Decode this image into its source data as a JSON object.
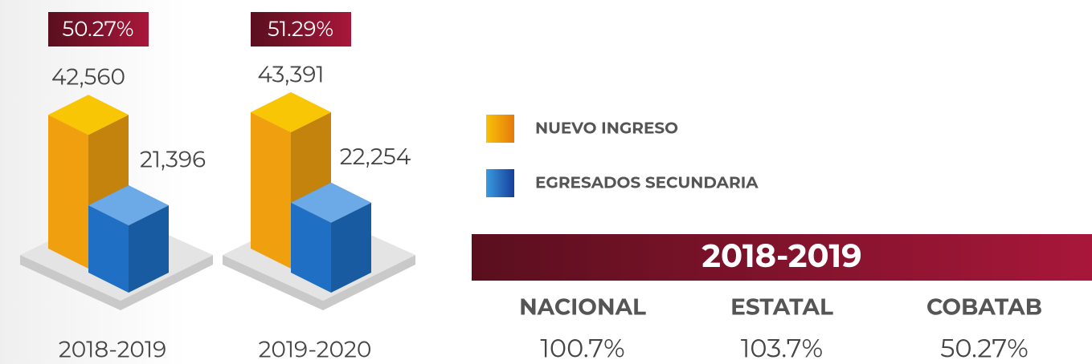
{
  "chart_data": {
    "type": "bar3d",
    "categories": [
      "2018-2019",
      "2019-2020"
    ],
    "percent_labels": [
      "50.27%",
      "51.29%"
    ],
    "series": [
      {
        "name": "NUEVO INGRESO",
        "color": "#f0a00f",
        "values": [
          42560,
          43391
        ],
        "value_labels": [
          "42,560",
          "43,391"
        ]
      },
      {
        "name": "EGRESADOS SECUNDARIA",
        "color": "#1f6fc4",
        "values": [
          21396,
          22254
        ],
        "value_labels": [
          "21,396",
          "22,254"
        ]
      }
    ]
  },
  "summary": {
    "title": "2018-2019",
    "columns": [
      {
        "label": "NACIONAL",
        "value": "100.7%"
      },
      {
        "label": "ESTATAL",
        "value": "103.7%"
      },
      {
        "label": "COBATAB",
        "value": "50.27%"
      }
    ]
  }
}
